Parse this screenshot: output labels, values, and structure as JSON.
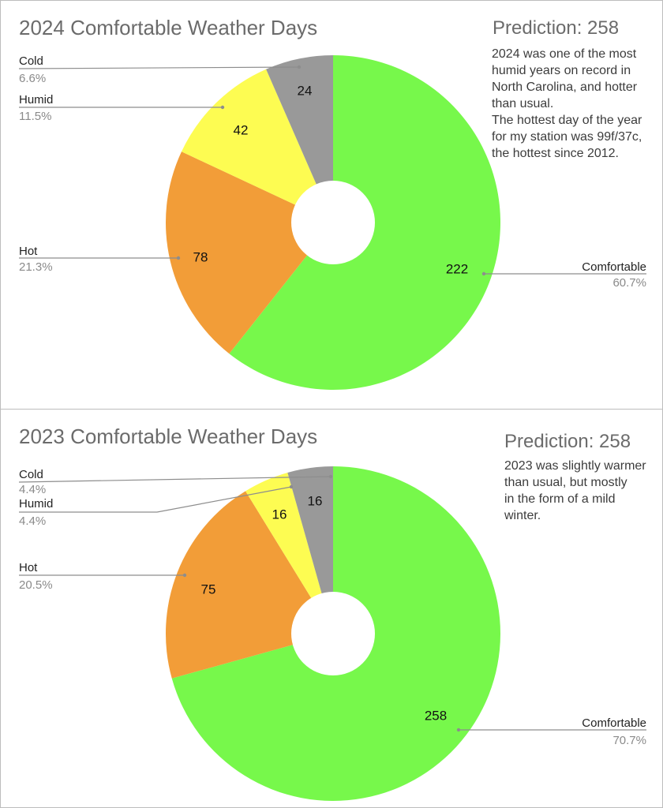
{
  "chart_data": [
    {
      "type": "pie",
      "title": "2024 Comfortable Weather Days",
      "categories": [
        "Comfortable",
        "Hot",
        "Humid",
        "Cold"
      ],
      "values": [
        222,
        78,
        42,
        24
      ],
      "percentages": [
        "60.7%",
        "21.3%",
        "11.5%",
        "6.6%"
      ],
      "colors": [
        "#77f84b",
        "#f29d38",
        "#fdfc52",
        "#999999"
      ],
      "prediction": "Prediction: 258",
      "note": [
        "2024 was one of the most",
        "humid years on record in",
        "North Carolina, and hotter",
        "than usual.",
        "The hottest day of the year",
        "for my station was 99f/37c,",
        "the hottest since 2012."
      ]
    },
    {
      "type": "pie",
      "title": "2023 Comfortable Weather Days",
      "categories": [
        "Comfortable",
        "Hot",
        "Humid",
        "Cold"
      ],
      "values": [
        258,
        75,
        16,
        16
      ],
      "percentages": [
        "70.7%",
        "20.5%",
        "4.4%",
        "4.4%"
      ],
      "colors": [
        "#77f84b",
        "#f29d38",
        "#fdfc52",
        "#999999"
      ],
      "prediction": "Prediction: 258",
      "note": [
        "2023 was slightly warmer",
        "than usual, but mostly",
        "in the form of a mild",
        "winter."
      ]
    }
  ]
}
